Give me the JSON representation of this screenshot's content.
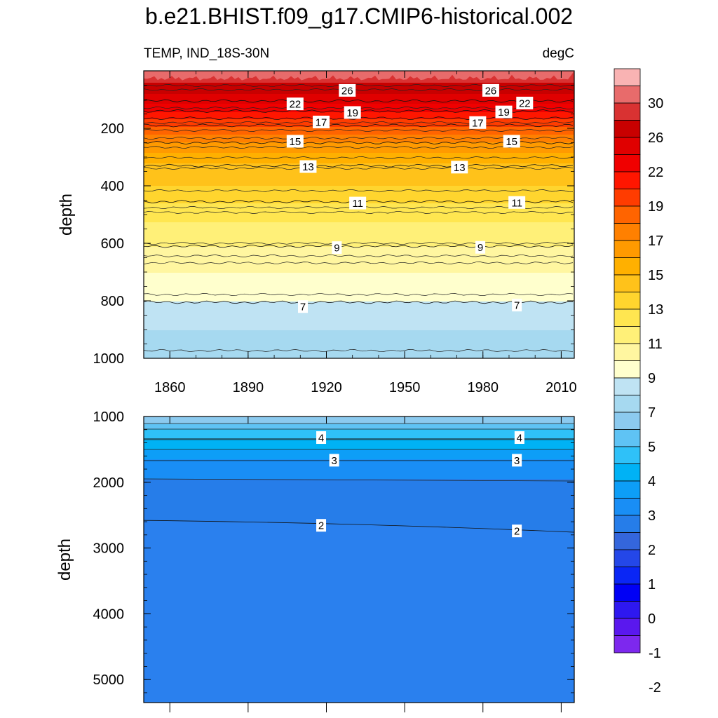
{
  "title": "b.e21.BHIST.f09_g17.CMIP6-historical.002",
  "chart_data": [
    {
      "type": "heatmap",
      "subtitle_left": "TEMP, IND_18S-30N",
      "subtitle_right": "degC",
      "ylabel": "depth",
      "xlim": [
        1850,
        2015
      ],
      "ylim": [
        1000,
        0
      ],
      "x_ticks": [
        "1860",
        "1890",
        "1920",
        "1950",
        "1980",
        "2010"
      ],
      "y_ticks": [
        "200",
        "400",
        "600",
        "800",
        "1000"
      ],
      "contours": [
        {
          "level": 26,
          "depth": 105
        },
        {
          "level": 22,
          "depth": 140
        },
        {
          "level": 19,
          "depth": 165
        },
        {
          "level": 17,
          "depth": 190
        },
        {
          "level": 15,
          "depth": 250
        },
        {
          "level": 13,
          "depth": 330
        },
        {
          "level": 11,
          "depth": 455
        },
        {
          "level": 9,
          "depth": 610
        },
        {
          "level": 7,
          "depth": 805
        }
      ],
      "contour_labels": [
        {
          "text": "26",
          "year": 1928,
          "depth": 68
        },
        {
          "text": "26",
          "year": 1983,
          "depth": 68
        },
        {
          "text": "22",
          "year": 1908,
          "depth": 115
        },
        {
          "text": "22",
          "year": 1996,
          "depth": 112
        },
        {
          "text": "19",
          "year": 1930,
          "depth": 145
        },
        {
          "text": "19",
          "year": 1988,
          "depth": 143
        },
        {
          "text": "17",
          "year": 1918,
          "depth": 178
        },
        {
          "text": "17",
          "year": 1978,
          "depth": 180
        },
        {
          "text": "15",
          "year": 1908,
          "depth": 245
        },
        {
          "text": "15",
          "year": 1991,
          "depth": 245
        },
        {
          "text": "13",
          "year": 1913,
          "depth": 333
        },
        {
          "text": "13",
          "year": 1971,
          "depth": 335
        },
        {
          "text": "11",
          "year": 1932,
          "depth": 460
        },
        {
          "text": "11",
          "year": 1993,
          "depth": 458
        },
        {
          "text": "9",
          "year": 1924,
          "depth": 615
        },
        {
          "text": "9",
          "year": 1979,
          "depth": 614
        },
        {
          "text": "7",
          "year": 1911,
          "depth": 820
        },
        {
          "text": "7",
          "year": 1993,
          "depth": 815
        }
      ]
    },
    {
      "type": "heatmap",
      "ylabel": "depth",
      "xlim": [
        1850,
        2015
      ],
      "ylim": [
        5350,
        1000
      ],
      "y_ticks": [
        "1000",
        "2000",
        "3000",
        "4000",
        "5000"
      ],
      "contours": [
        {
          "level": 4,
          "depth": 1340
        },
        {
          "level": 3,
          "depth": 1670
        },
        {
          "level": 2,
          "depth_start": 2580,
          "depth_end": 2760
        }
      ],
      "contour_labels": [
        {
          "text": "4",
          "year": 1918,
          "depth": 1320
        },
        {
          "text": "4",
          "year": 1994,
          "depth": 1320
        },
        {
          "text": "3",
          "year": 1923,
          "depth": 1665
        },
        {
          "text": "3",
          "year": 1993,
          "depth": 1665
        },
        {
          "text": "2",
          "year": 1918,
          "depth": 2655
        },
        {
          "text": "2",
          "year": 1993,
          "depth": 2740
        }
      ]
    }
  ],
  "colorbar": {
    "labels": [
      "30",
      "26",
      "22",
      "19",
      "17",
      "15",
      "13",
      "11",
      "9",
      "7",
      "5",
      "4",
      "3",
      "2",
      "1",
      "0",
      "-1",
      "-2"
    ],
    "colors": [
      "#f9b3b3",
      "#e86b6b",
      "#d93232",
      "#c80000",
      "#e00000",
      "#f00000",
      "#ff1600",
      "#ff3c00",
      "#ff6400",
      "#ff8000",
      "#ff9a00",
      "#ffb000",
      "#ffc21a",
      "#ffd52e",
      "#ffe650",
      "#fff078",
      "#fff6a0",
      "#ffffcd",
      "#bfe3f3",
      "#a6d9f0",
      "#8ccaef",
      "#5fc3f4",
      "#2fc1f8",
      "#00b2f5",
      "#0d9ef7",
      "#198ef5",
      "#267de9",
      "#3466dc",
      "#2447e8",
      "#0a26f5",
      "#0000f5",
      "#2e18f0",
      "#5a18ee",
      "#7d28ee"
    ]
  }
}
